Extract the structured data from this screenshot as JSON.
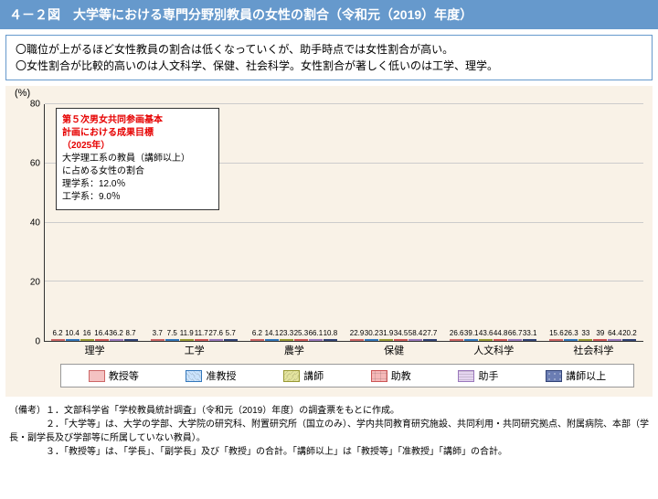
{
  "title": "４－２図　大学等における専門分野別教員の女性の割合（令和元（2019）年度）",
  "notes": [
    "〇職位が上がるほど女性教員の割合は低くなっていくが、助手時点では女性割合が高い。",
    "〇女性割合が比較的高いのは人文科学、保健、社会科学。女性割合が著しく低いのは工学、理学。"
  ],
  "chart": {
    "type": "bar",
    "ylabel_unit": "(%)",
    "ylim": [
      0,
      80
    ],
    "ytick_step": 20,
    "background": "#f9f2e7",
    "grid_color": "#cccccc",
    "categories": [
      "理学",
      "工学",
      "農学",
      "保健",
      "人文科学",
      "社会科学"
    ],
    "series": [
      {
        "name": "教授等",
        "color": "#f4c2c2",
        "pattern": "",
        "border": "#cc6666"
      },
      {
        "name": "准教授",
        "color": "#cce5ff",
        "pattern": "diag",
        "border": "#3377bb"
      },
      {
        "name": "講師",
        "color": "#e5e5a0",
        "pattern": "diag2",
        "border": "#999933"
      },
      {
        "name": "助教",
        "color": "#f5b8b8",
        "pattern": "grid",
        "border": "#cc5555"
      },
      {
        "name": "助手",
        "color": "#e5d5f0",
        "pattern": "wave",
        "border": "#9977bb"
      },
      {
        "name": "講師以上",
        "color": "#6b7db3",
        "pattern": "dots",
        "border": "#334477"
      }
    ],
    "data": [
      [
        6.2,
        10.4,
        16.0,
        16.4,
        36.2,
        8.7
      ],
      [
        3.7,
        7.5,
        11.9,
        11.7,
        27.6,
        5.7
      ],
      [
        6.2,
        14.1,
        23.3,
        25.3,
        66.1,
        10.8
      ],
      [
        22.9,
        30.2,
        31.9,
        34.5,
        58.4,
        27.7
      ],
      [
        26.6,
        39.1,
        43.6,
        44.8,
        66.7,
        33.1
      ],
      [
        15.6,
        26.3,
        33.0,
        39.0,
        64.4,
        20.2
      ]
    ]
  },
  "annotation": {
    "red_lines": [
      "第５次男女共同参画基本",
      "計画における成果目標",
      "（2025年）"
    ],
    "body_lines": [
      "大学理工系の教員（講師以上）",
      "に占める女性の割合",
      "理学系：12.0％",
      "工学系：9.0％"
    ]
  },
  "footnotes": [
    "（備考）１．文部科学省「学校教員統計調査」（令和元（2019）年度）の調査票をもとに作成。",
    "　　　　２．「大学等」は、大学の学部、大学院の研究科、附置研究所（国立のみ）、学内共同教育研究施設、共同利用・共同研究拠点、附属病院、本部（学長・副学長及び学部等に所属していない教員）。",
    "　　　　３．「教授等」は、「学長」、「副学長」及び「教授」の合計。「講師以上」は「教授等」「准教授」「講師」の合計。"
  ]
}
